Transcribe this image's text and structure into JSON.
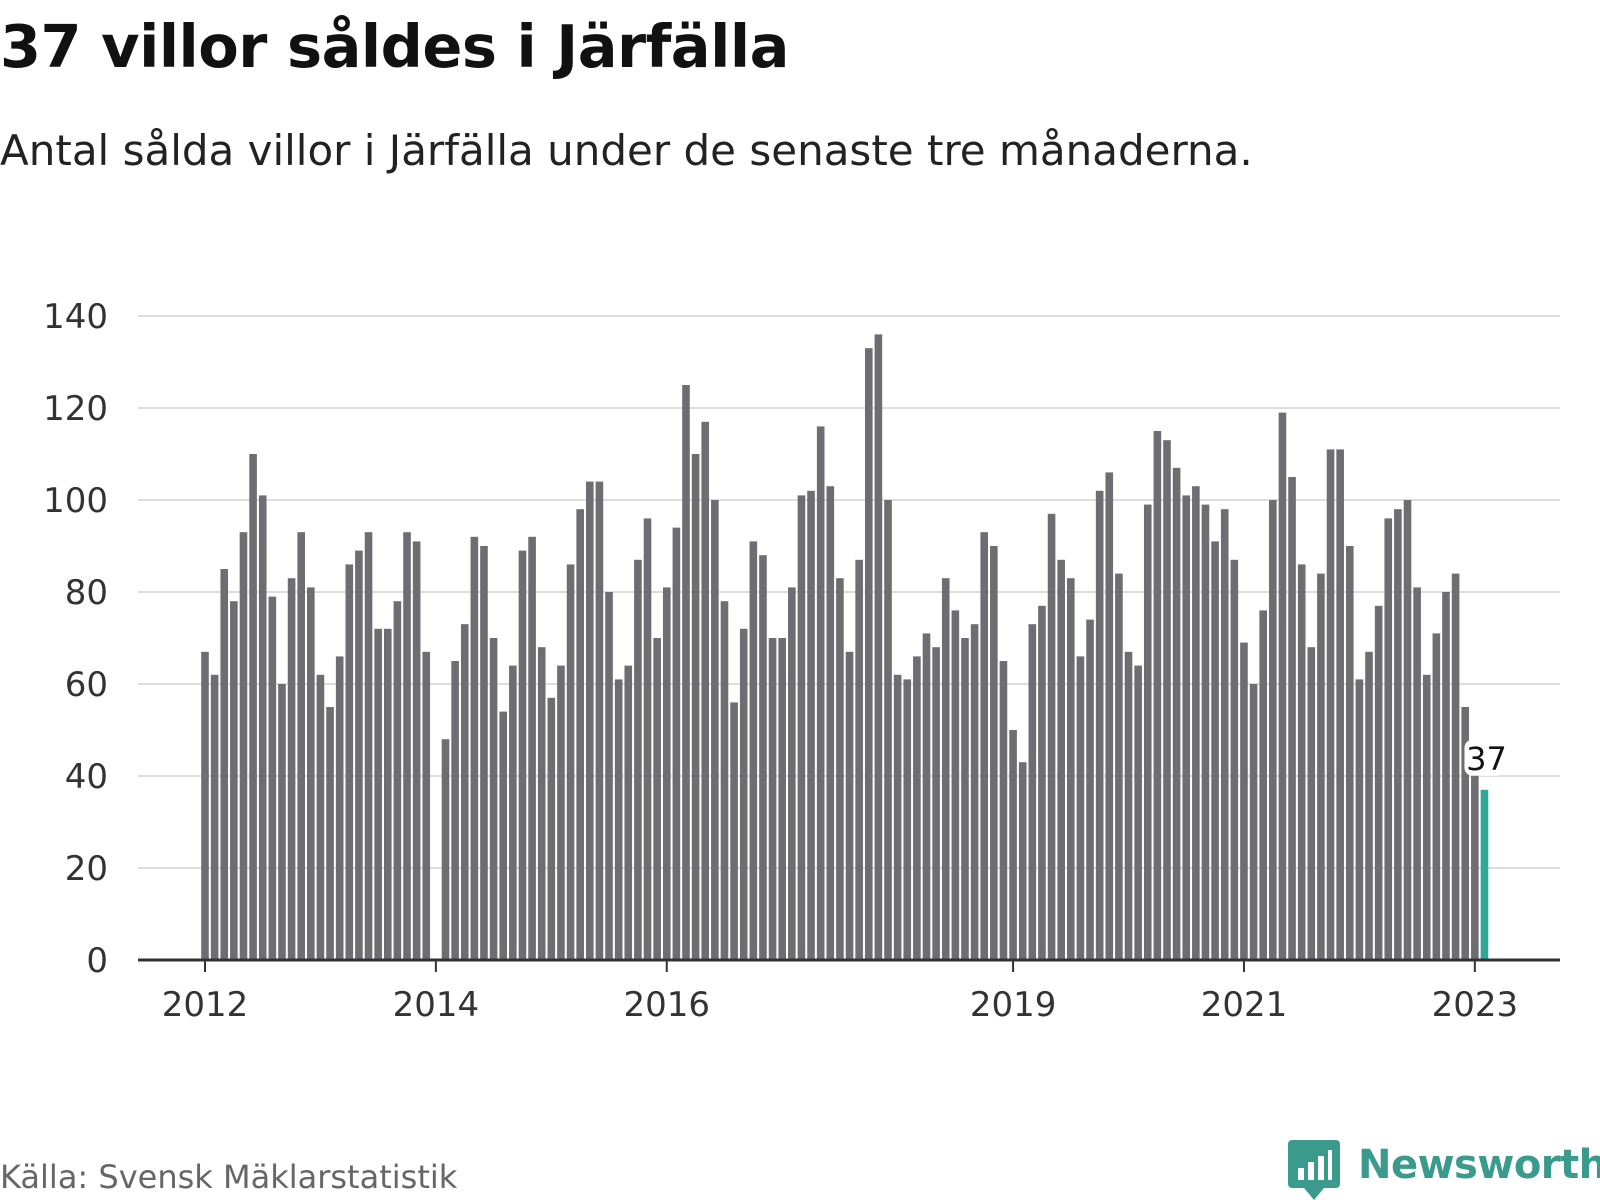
{
  "title": "37 villor såldes i Järfälla",
  "subtitle": "Antal sålda villor i Järfälla under de senaste tre månaderna.",
  "source": "Källa: Svensk Mäklarstatistik",
  "brand": "Newsworthy",
  "colors": {
    "bar": "#6d6d72",
    "highlight": "#2fa898",
    "grid": "#dddddd",
    "axis": "#333333",
    "brand": "#3a9a8c"
  },
  "chart_data": {
    "type": "bar",
    "ylim": [
      0,
      140
    ],
    "yticks": [
      0,
      20,
      40,
      60,
      80,
      100,
      120,
      140
    ],
    "grid": true,
    "x_ticks": [
      {
        "label": "2012",
        "index": 0
      },
      {
        "label": "2014",
        "index": 24
      },
      {
        "label": "2016",
        "index": 48
      },
      {
        "label": "2019",
        "index": 84
      },
      {
        "label": "2021",
        "index": 108
      },
      {
        "label": "2023",
        "index": 132
      }
    ],
    "values": [
      67,
      62,
      85,
      78,
      93,
      110,
      101,
      79,
      60,
      83,
      93,
      81,
      62,
      55,
      66,
      86,
      89,
      93,
      72,
      72,
      78,
      93,
      91,
      67,
      0,
      48,
      65,
      73,
      92,
      90,
      70,
      54,
      64,
      89,
      92,
      68,
      57,
      64,
      86,
      98,
      104,
      104,
      80,
      61,
      64,
      87,
      96,
      70,
      81,
      94,
      125,
      110,
      117,
      100,
      78,
      56,
      72,
      91,
      88,
      70,
      70,
      81,
      101,
      102,
      116,
      103,
      83,
      67,
      87,
      133,
      136,
      100,
      62,
      61,
      66,
      71,
      68,
      83,
      76,
      70,
      73,
      93,
      90,
      65,
      50,
      43,
      73,
      77,
      97,
      87,
      83,
      66,
      74,
      102,
      106,
      84,
      67,
      64,
      99,
      115,
      113,
      107,
      101,
      103,
      99,
      91,
      98,
      87,
      69,
      60,
      76,
      100,
      119,
      105,
      86,
      68,
      84,
      111,
      111,
      90,
      61,
      67,
      77,
      96,
      98,
      100,
      81,
      62,
      71,
      80,
      84,
      55,
      42,
      37
    ],
    "highlight_index": 133,
    "highlight_label": "37"
  }
}
